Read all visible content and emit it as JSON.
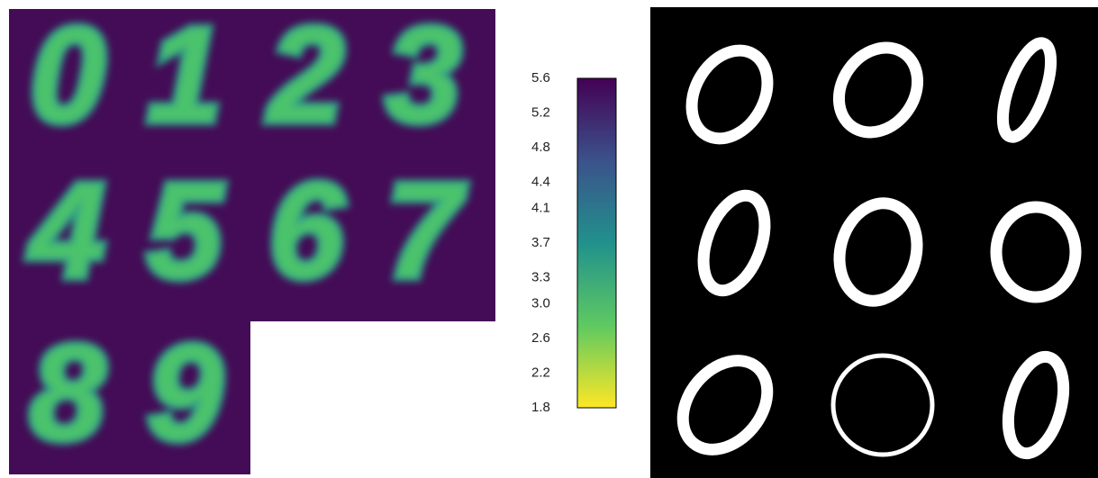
{
  "left_panel": {
    "digits": [
      "0",
      "1",
      "2",
      "3",
      "4",
      "5",
      "6",
      "7",
      "8",
      "9"
    ]
  },
  "colorbar": {
    "lim": [
      1.8,
      5.6
    ],
    "ticks": [
      5.6,
      5.2,
      4.8,
      4.4,
      4.1,
      3.7,
      3.3,
      {
        "value": 3,
        "label": "3.0"
      },
      2.6,
      2.2,
      1.8
    ],
    "colors": [
      "#fde725",
      "#5ec962",
      "#21918c",
      "#3b528b",
      "#440154"
    ]
  }
}
